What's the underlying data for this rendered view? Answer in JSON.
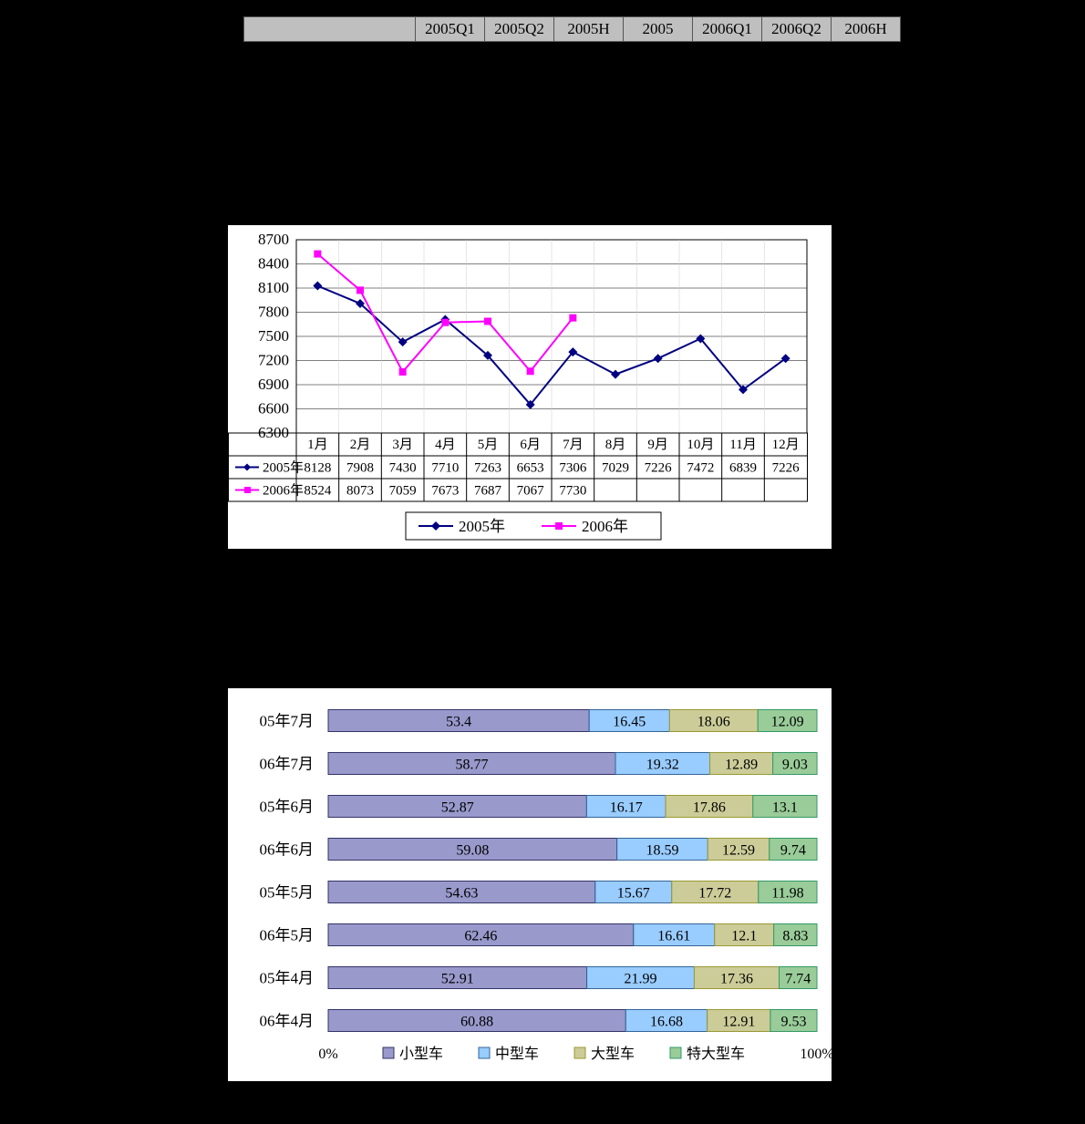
{
  "colors": {
    "navy": "#000080",
    "magenta": "#ff00ff",
    "black": "#000000",
    "grey": "#808080",
    "headerGrey": "#bfbfbf",
    "purple": "#9999cc",
    "purpleDk": "#333366",
    "blue": "#99ccff",
    "blueDk": "#336699",
    "olive": "#cccc99",
    "oliveDk": "#999933",
    "green": "#99cc99",
    "greenDk": "#339966"
  },
  "topTable": {
    "headers": [
      "",
      "2005Q1",
      "2005Q2",
      "2005H",
      "2005",
      "2006Q1",
      "2006Q2",
      "2006H"
    ]
  },
  "lineChart": {
    "type": "line",
    "ylim": [
      6300,
      8700
    ],
    "ytick_step": 300,
    "months": [
      "1月",
      "2月",
      "3月",
      "4月",
      "5月",
      "6月",
      "7月",
      "8月",
      "9月",
      "10月",
      "11月",
      "12月"
    ],
    "series": [
      {
        "name": "2005年",
        "color": "#000080",
        "marker": "diamond",
        "values": [
          8128,
          7908,
          7430,
          7710,
          7263,
          6653,
          7306,
          7029,
          7226,
          7472,
          6839,
          7226
        ]
      },
      {
        "name": "2006年",
        "color": "#ff00ff",
        "marker": "square",
        "values": [
          8524,
          8073,
          7059,
          7673,
          7687,
          7067,
          7730
        ]
      }
    ],
    "legend": [
      "2005年",
      "2006年"
    ]
  },
  "barChart": {
    "type": "stacked-bar-100",
    "xlim": [
      0,
      100
    ],
    "xlabels": [
      "0%",
      "100%"
    ],
    "categories": [
      "06年4月",
      "05年4月",
      "06年5月",
      "05年5月",
      "06年6月",
      "05年6月",
      "06年7月",
      "05年7月"
    ],
    "top_to_bottom": [
      "05年7月",
      "06年7月",
      "05年6月",
      "06年6月",
      "05年5月",
      "06年5月",
      "05年4月",
      "06年4月"
    ],
    "segments": [
      {
        "name": "小型车",
        "fill": "#9999cc",
        "stroke": "#333366"
      },
      {
        "name": "中型车",
        "fill": "#99ccff",
        "stroke": "#336699"
      },
      {
        "name": "大型车",
        "fill": "#cccc99",
        "stroke": "#999933"
      },
      {
        "name": "特大型车",
        "fill": "#99cc99",
        "stroke": "#339966"
      }
    ],
    "data": {
      "05年7月": [
        53.4,
        16.45,
        18.06,
        12.09
      ],
      "06年7月": [
        58.77,
        19.32,
        12.89,
        9.03
      ],
      "05年6月": [
        52.87,
        16.17,
        17.86,
        13.1
      ],
      "06年6月": [
        59.08,
        18.59,
        12.59,
        9.74
      ],
      "05年5月": [
        54.63,
        15.67,
        17.72,
        11.98
      ],
      "06年5月": [
        62.46,
        16.61,
        12.1,
        8.83
      ],
      "05年4月": [
        52.91,
        21.99,
        17.36,
        7.74
      ],
      "06年4月": [
        60.88,
        16.68,
        12.91,
        9.53
      ]
    },
    "legend": [
      "小型车",
      "中型车",
      "大型车",
      "特大型车"
    ]
  }
}
